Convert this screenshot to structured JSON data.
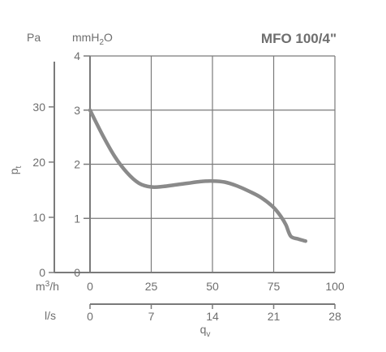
{
  "chart_data": {
    "type": "line",
    "title": "MFO 100/4\"",
    "ylabel_pa_unit": "Pa",
    "ylabel_mmh2o_unit": "mmH",
    "ylabel_mmh2o_sub": "2",
    "ylabel_mmh2o_suffix": "O",
    "pressure_symbol": "p",
    "pressure_sub": "t",
    "flow_symbol": "q",
    "flow_sub": "v",
    "xunit_m3h_prefix": "m",
    "xunit_m3h_sup": "3",
    "xunit_m3h_suffix": "/h",
    "xunit_ls": "l/s",
    "x_m3h": {
      "range": [
        0,
        100
      ],
      "ticks": [
        "0",
        "25",
        "50",
        "75",
        "100"
      ],
      "values": [
        0,
        25,
        50,
        75,
        100
      ]
    },
    "x_ls": {
      "ticks": [
        "0",
        "7",
        "14",
        "21",
        "28"
      ],
      "values": [
        0,
        7,
        14,
        21,
        28
      ]
    },
    "y_mmh2o": {
      "range": [
        0,
        4
      ],
      "ticks": [
        "0",
        "1",
        "2",
        "3",
        "4"
      ],
      "values": [
        0,
        1,
        2,
        3,
        4
      ]
    },
    "y_pa": {
      "ticks": [
        "0",
        "10",
        "20",
        "30"
      ],
      "values": [
        0,
        10,
        20,
        30
      ]
    },
    "grid": true,
    "series": [
      {
        "x": [
          0,
          5,
          10,
          15,
          20,
          25,
          30,
          35,
          40,
          45,
          50,
          55,
          60,
          65,
          70,
          75,
          78,
          80,
          82,
          85,
          88
        ],
        "y": [
          3.0,
          2.55,
          2.15,
          1.85,
          1.65,
          1.58,
          1.59,
          1.62,
          1.65,
          1.68,
          1.69,
          1.67,
          1.6,
          1.5,
          1.38,
          1.2,
          1.03,
          0.88,
          0.67,
          0.62,
          0.58
        ]
      }
    ],
    "colors": {
      "curve": "#8a8a8a",
      "grid": "#7a7a7a",
      "text": "#6e6e6e"
    }
  }
}
